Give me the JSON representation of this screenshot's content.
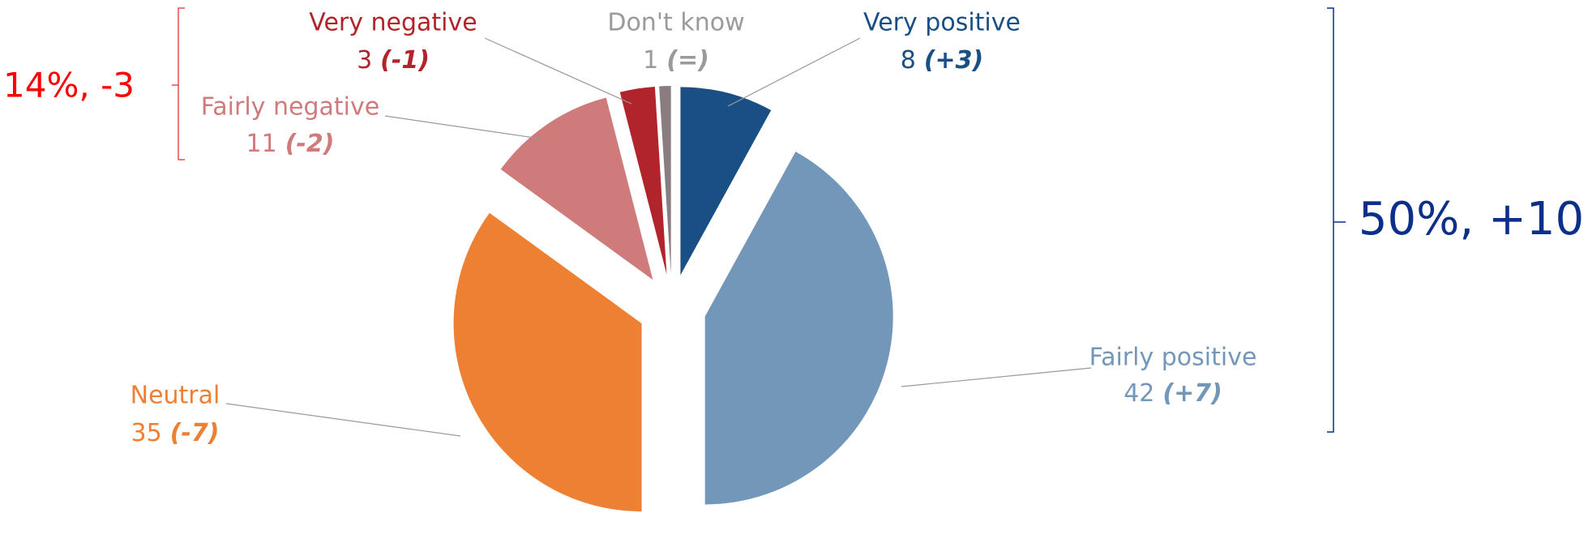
{
  "chart_data": {
    "type": "pie",
    "categories": [
      "Very positive",
      "Fairly positive",
      "Neutral",
      "Fairly negative",
      "Very negative",
      "Don't know"
    ],
    "values": [
      8,
      42,
      35,
      11,
      3,
      1
    ],
    "changes": [
      "(+3)",
      "(+7)",
      "(-7)",
      "(-2)",
      "(-1)",
      "(=)"
    ],
    "colors": [
      "#1a4f85",
      "#7397b9",
      "#ed8032",
      "#cf7b7c",
      "#b2242b",
      "#8a7d80"
    ],
    "label_colors": [
      "#1a4f85",
      "#7397b9",
      "#ed8032",
      "#cf7b7c",
      "#b2242b",
      "#9a9a9a"
    ],
    "annotations": [
      {
        "text": "14%, -3",
        "color": "#ff0000"
      },
      {
        "text": "50%, +10",
        "color": "#0b2f8a"
      }
    ]
  }
}
